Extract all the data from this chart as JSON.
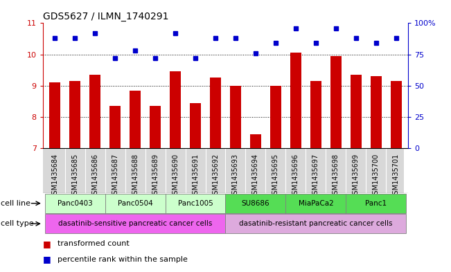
{
  "title": "GDS5627 / ILMN_1740291",
  "samples": [
    "GSM1435684",
    "GSM1435685",
    "GSM1435686",
    "GSM1435687",
    "GSM1435688",
    "GSM1435689",
    "GSM1435690",
    "GSM1435691",
    "GSM1435692",
    "GSM1435693",
    "GSM1435694",
    "GSM1435695",
    "GSM1435696",
    "GSM1435697",
    "GSM1435698",
    "GSM1435699",
    "GSM1435700",
    "GSM1435701"
  ],
  "bar_values": [
    9.1,
    9.15,
    9.35,
    8.35,
    8.85,
    8.35,
    9.45,
    8.45,
    9.25,
    9.0,
    7.45,
    9.0,
    10.05,
    9.15,
    9.95,
    9.35,
    9.3,
    9.15
  ],
  "dot_values": [
    88,
    88,
    92,
    72,
    78,
    72,
    92,
    72,
    88,
    88,
    76,
    84,
    96,
    84,
    96,
    88,
    84,
    88
  ],
  "bar_color": "#cc0000",
  "dot_color": "#0000cc",
  "ylim_left": [
    7,
    11
  ],
  "ylim_right": [
    0,
    100
  ],
  "yticks_left": [
    7,
    8,
    9,
    10,
    11
  ],
  "yticks_right": [
    0,
    25,
    50,
    75,
    100
  ],
  "ytick_labels_right": [
    "0",
    "25",
    "50",
    "75",
    "100%"
  ],
  "cell_lines": [
    {
      "label": "Panc0403",
      "start": 0,
      "end": 3,
      "color": "#ccffcc"
    },
    {
      "label": "Panc0504",
      "start": 3,
      "end": 6,
      "color": "#ccffcc"
    },
    {
      "label": "Panc1005",
      "start": 6,
      "end": 9,
      "color": "#ccffcc"
    },
    {
      "label": "SU8686",
      "start": 9,
      "end": 12,
      "color": "#55dd55"
    },
    {
      "label": "MiaPaCa2",
      "start": 12,
      "end": 15,
      "color": "#55dd55"
    },
    {
      "label": "Panc1",
      "start": 15,
      "end": 18,
      "color": "#55dd55"
    }
  ],
  "cell_types": [
    {
      "label": "dasatinib-sensitive pancreatic cancer cells",
      "start": 0,
      "end": 9,
      "color": "#ee66ee"
    },
    {
      "label": "dasatinib-resistant pancreatic cancer cells",
      "start": 9,
      "end": 18,
      "color": "#ddaadd"
    }
  ],
  "legend_items": [
    {
      "label": "transformed count",
      "color": "#cc0000"
    },
    {
      "label": "percentile rank within the sample",
      "color": "#0000cc"
    }
  ],
  "background_color": "#ffffff",
  "tick_color_left": "#cc0000",
  "tick_color_right": "#0000cc",
  "label_fontsize": 7,
  "tick_fontsize": 8
}
